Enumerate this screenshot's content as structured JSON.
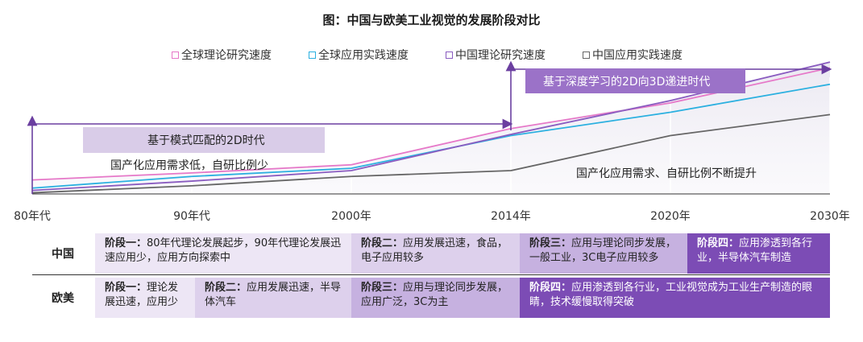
{
  "title": "图：中国与欧美工业视觉的发展阶段对比",
  "colors": {
    "global_theory": "#e678c8",
    "global_practice": "#2bb0e0",
    "china_theory": "#8a5cc0",
    "china_practice": "#666666",
    "era_light": "#d9cce8",
    "era_dark": "#9b72c8",
    "arrow": "#6b3fa0"
  },
  "chart_data": {
    "type": "line",
    "title": "图：中国与欧美工业视觉的发展阶段对比",
    "x": [
      "80年代",
      "90年代",
      "2000年",
      "2014年",
      "2020年",
      "2030年"
    ],
    "y_range": [
      0,
      100
    ],
    "grid": false,
    "legend_position": "top",
    "series": [
      {
        "name": "全球理论研究速度",
        "color": "#e678c8",
        "values": [
          12,
          18,
          25,
          56,
          78,
          108
        ]
      },
      {
        "name": "全球应用实践速度",
        "color": "#2bb0e0",
        "values": [
          5,
          15,
          22,
          50,
          70,
          94
        ]
      },
      {
        "name": "中国理论研究速度",
        "color": "#8a5cc0",
        "values": [
          3,
          11,
          20,
          51,
          80,
          113
        ]
      },
      {
        "name": "中国应用实践速度",
        "color": "#666666",
        "values": [
          1,
          7,
          15,
          20,
          50,
          68
        ]
      }
    ],
    "annotations": [
      "基于模式匹配的2D时代",
      "基于深度学习的2D向3D递进时代",
      "国产化应用需求低，自研比例少",
      "国产化应用需求、自研比例不断提升"
    ]
  },
  "eras": {
    "era1": "基于模式匹配的2D时代",
    "era2": "基于深度学习的2D向3D递进时代"
  },
  "notes": {
    "low": "国产化应用需求低，自研比例少",
    "rising": "国产化应用需求、自研比例不断提升"
  },
  "xticks": [
    "80年代",
    "90年代",
    "2000年",
    "2014年",
    "2020年",
    "2030年"
  ],
  "table": {
    "china_label": "中国",
    "west_label": "欧美",
    "china": [
      {
        "stage": "阶段一：",
        "text": "80年代理论发展起步，90年代理论发展迅速应用少，应用方向探索中"
      },
      {
        "stage": "阶段二：",
        "text": "应用发展迅速，食品，电子应用较多"
      },
      {
        "stage": "阶段三：",
        "text": "应用与理论同步发展，一般工业，3C电子应用较多"
      },
      {
        "stage": "阶段四：",
        "text": "应用渗透到各行业，半导体汽车制造"
      }
    ],
    "west": [
      {
        "stage": "阶段一：",
        "text": "理论发展迅速，应用少"
      },
      {
        "stage": "阶段二：",
        "text": "应用发展迅速，半导体汽车"
      },
      {
        "stage": "阶段三：",
        "text": "应用与理论同步发展，应用广泛，3C为主"
      },
      {
        "stage": "阶段四：",
        "text": "应用渗透到各行业，工业视觉成为工业生产制造的眼睛，技术缓慢取得突破"
      }
    ]
  }
}
